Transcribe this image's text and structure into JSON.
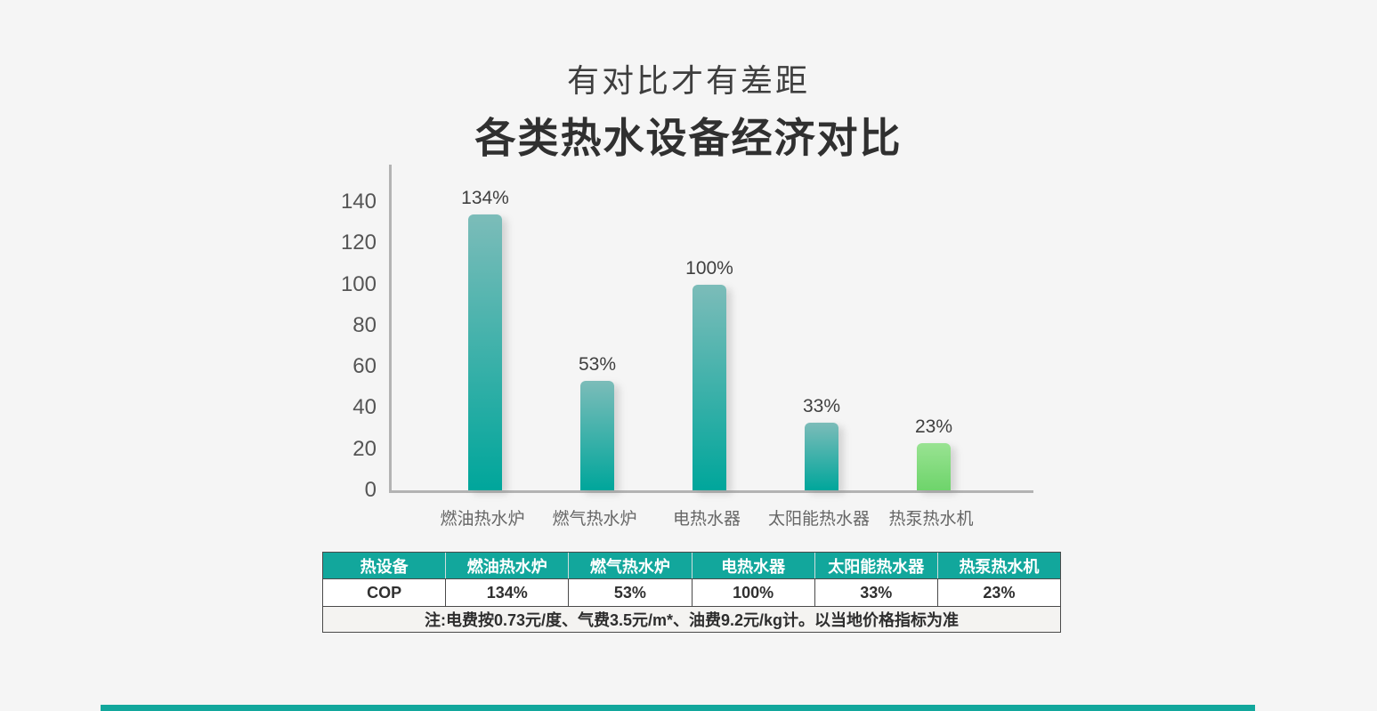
{
  "page": {
    "background": "#f5f5f5"
  },
  "header": {
    "subtitle": "有对比才有差距",
    "title": "各类热水设备经济对比"
  },
  "chart_data": {
    "type": "bar",
    "title": "各类热水设备经济对比",
    "categories": [
      "燃油热水炉",
      "燃气热水炉",
      "电热水器",
      "太阳能热水器",
      "热泵热水机"
    ],
    "values": [
      134,
      53,
      100,
      33,
      23
    ],
    "value_labels": [
      "134%",
      "53%",
      "100%",
      "33%",
      "23%"
    ],
    "xlabel": "",
    "ylabel": "",
    "ylim": [
      0,
      140
    ],
    "yticks": [
      0,
      20,
      40,
      60,
      80,
      100,
      120,
      140
    ],
    "grid": false,
    "legend": false,
    "colors": {
      "bar_top": "#7cbcb9",
      "bar_bottom": "#00a69b",
      "highlight_index": 4,
      "highlight_top": "#99e392",
      "highlight_bottom": "#6ed46b",
      "axis": "#b3b3b3"
    }
  },
  "table": {
    "header_row": [
      "热设备",
      "燃油热水炉",
      "燃气热水炉",
      "电热水器",
      "太阳能热水器",
      "热泵热水机"
    ],
    "data_row": [
      "COP",
      "134%",
      "53%",
      "100%",
      "33%",
      "23%"
    ],
    "note": "注:电费按0.73元/度、气费3.5元/m*、油费9.2元/kg计。以当地价格指标为准",
    "header_bg": "#12a79c"
  },
  "footer": {
    "accent_color": "#12a79c"
  }
}
